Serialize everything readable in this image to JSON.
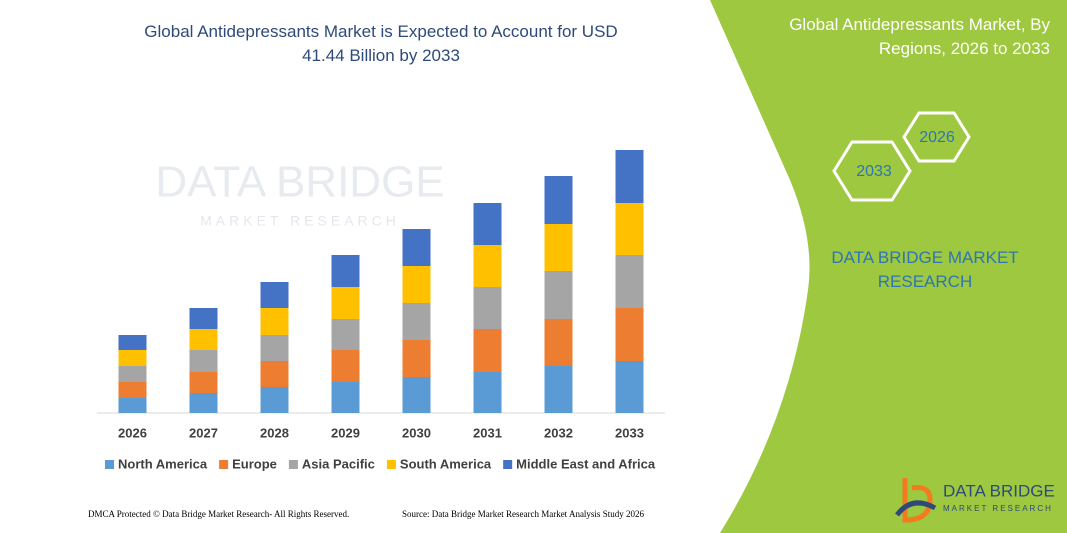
{
  "chart_data": {
    "type": "stacked_bar",
    "title": "Global Antidepressants Market is Expected to Account for USD 41.44 Billion by 2033",
    "categories": [
      "2026",
      "2027",
      "2028",
      "2029",
      "2030",
      "2031",
      "2032",
      "2033"
    ],
    "series": [
      {
        "name": "North America",
        "color": "#5b9bd5",
        "values": [
          15,
          20,
          26,
          31,
          36,
          41,
          47,
          52
        ]
      },
      {
        "name": "Europe",
        "color": "#ed7d31",
        "values": [
          16,
          21,
          26,
          32,
          37,
          43,
          47,
          53
        ]
      },
      {
        "name": "Asia Pacific",
        "color": "#a5a5a5",
        "values": [
          16,
          22,
          26,
          31,
          37,
          42,
          48,
          53
        ]
      },
      {
        "name": "South America",
        "color": "#ffc000",
        "values": [
          16,
          21,
          27,
          32,
          37,
          42,
          47,
          52
        ]
      },
      {
        "name": "Middle East and Africa",
        "color": "#4472c4",
        "values": [
          15,
          21,
          26,
          32,
          37,
          42,
          48,
          53
        ]
      }
    ],
    "legend": "bottom"
  },
  "watermark": {
    "line1": "DATA BRIDGE",
    "line2": "MARKET RESEARCH"
  },
  "side_panel": {
    "title": "Global Antidepressants Market, By Regions, 2026 to 2033",
    "hexagons": [
      "2026",
      "2033"
    ],
    "brand": "DATA BRIDGE MARKET RESEARCH"
  },
  "logo": {
    "line1": "DATA BRIDGE",
    "line2": "MARKET RESEARCH"
  },
  "footer": {
    "left": "DMCA Protected © Data Bridge Market Research- All Rights Reserved.",
    "right": "Source: Data Bridge Market Research  Market Analysis Study 2026"
  }
}
